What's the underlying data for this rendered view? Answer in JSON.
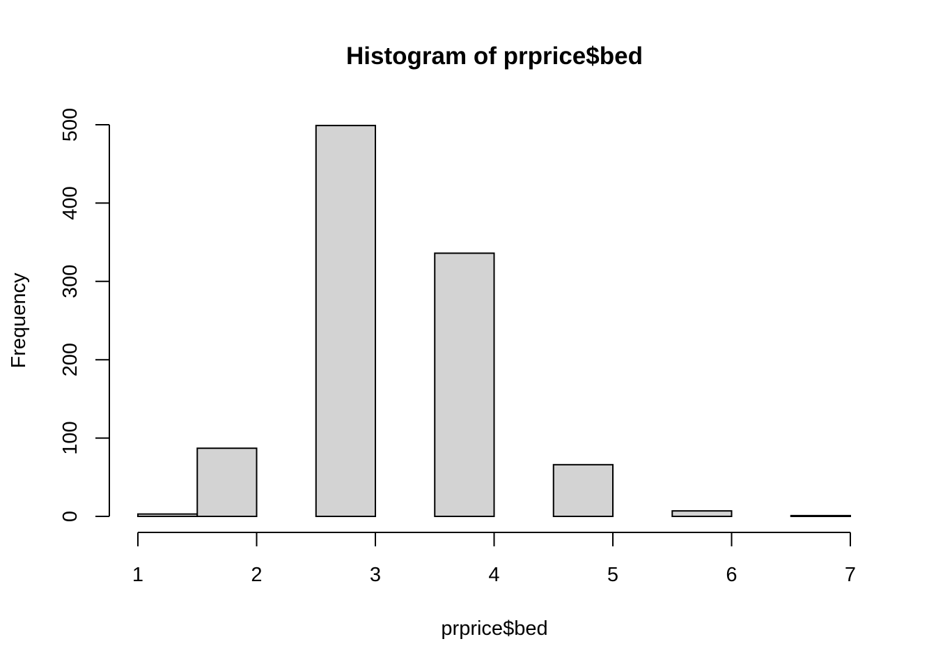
{
  "chart_data": {
    "type": "bar",
    "title": "Histogram of prprice$bed",
    "xlabel": "prprice$bed",
    "ylabel": "Frequency",
    "bins": [
      {
        "from": 1.0,
        "to": 1.5,
        "value": 3
      },
      {
        "from": 1.5,
        "to": 2.0,
        "value": 87
      },
      {
        "from": 2.0,
        "to": 2.5,
        "value": 0
      },
      {
        "from": 2.5,
        "to": 3.0,
        "value": 499
      },
      {
        "from": 3.0,
        "to": 3.5,
        "value": 0
      },
      {
        "from": 3.5,
        "to": 4.0,
        "value": 336
      },
      {
        "from": 4.0,
        "to": 4.5,
        "value": 0
      },
      {
        "from": 4.5,
        "to": 5.0,
        "value": 66
      },
      {
        "from": 5.0,
        "to": 5.5,
        "value": 0
      },
      {
        "from": 5.5,
        "to": 6.0,
        "value": 7
      },
      {
        "from": 6.0,
        "to": 6.5,
        "value": 0
      },
      {
        "from": 6.5,
        "to": 7.0,
        "value": 1
      }
    ],
    "xlim": [
      1,
      7
    ],
    "ylim": [
      0,
      500
    ],
    "xticks": [
      "1",
      "2",
      "3",
      "4",
      "5",
      "6",
      "7"
    ],
    "yticks": [
      "0",
      "100",
      "200",
      "300",
      "400",
      "500"
    ],
    "grid": false,
    "colors": {
      "bar_fill": "#d3d3d3",
      "bar_stroke": "#000000"
    }
  }
}
